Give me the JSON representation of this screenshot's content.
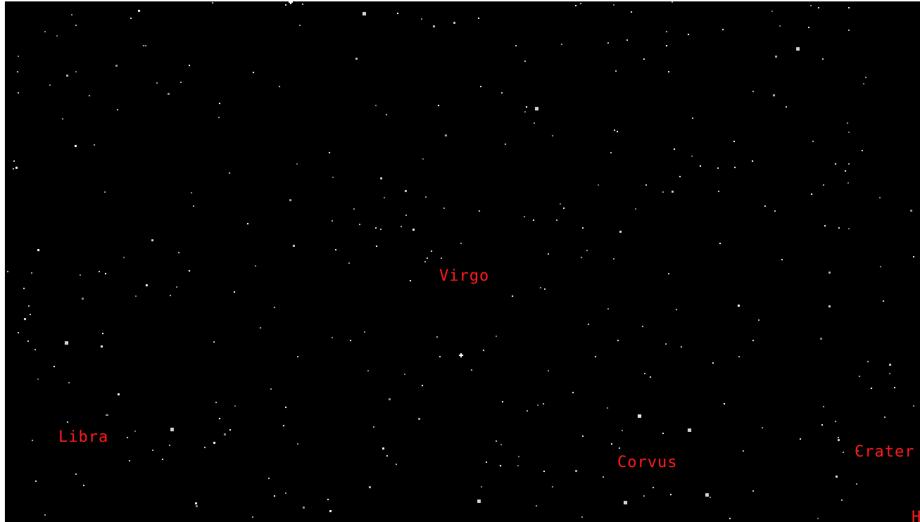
{
  "labels": {
    "virgo": "Virgo",
    "libra": "Libra",
    "corvus": "Corvus",
    "crater": "Crater",
    "hydra_partial": "H"
  }
}
